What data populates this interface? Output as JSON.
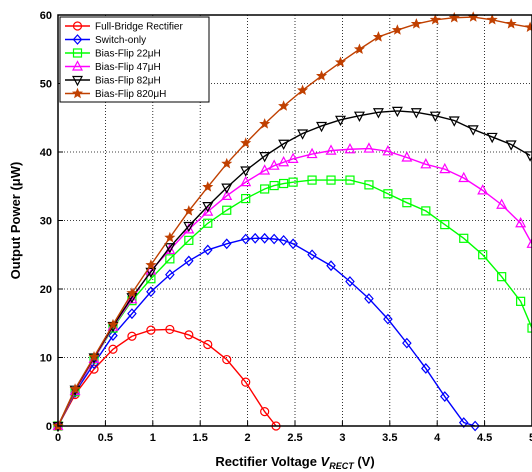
{
  "chart_data": {
    "type": "line",
    "xlabel": "Rectifier Voltage V_RECT (V)",
    "xlabel_parts": {
      "pre": "Rectifier Voltage ",
      "var": "V",
      "sub": "RECT",
      "post": " (V)"
    },
    "ylabel": "Output Power (μW)",
    "xlim": [
      0,
      5
    ],
    "ylim": [
      0,
      60
    ],
    "x_ticks": [
      0,
      0.5,
      1,
      1.5,
      2,
      2.5,
      3,
      3.5,
      4,
      4.5,
      5
    ],
    "x_tick_labels": [
      "0",
      "0.5",
      "1",
      "1.5",
      "2",
      "2.5",
      "3",
      "3.5",
      "4",
      "4.5",
      "5"
    ],
    "y_ticks": [
      0,
      10,
      20,
      30,
      40,
      50,
      60
    ],
    "y_tick_labels": [
      "0",
      "10",
      "20",
      "30",
      "40",
      "50",
      "60"
    ],
    "grid": true,
    "legend_position": "top-left",
    "series": [
      {
        "name": "Full-Bridge Rectifier",
        "color": "#ff0000",
        "marker": "circle",
        "x": [
          0,
          0.18,
          0.38,
          0.58,
          0.78,
          0.98,
          1.18,
          1.38,
          1.58,
          1.78,
          1.98,
          2.18,
          2.3
        ],
        "y": [
          0,
          4.6,
          8.3,
          11.2,
          13.1,
          14.0,
          14.1,
          13.3,
          11.9,
          9.7,
          6.4,
          2.1,
          0
        ]
      },
      {
        "name": "Switch-only",
        "color": "#0000ff",
        "marker": "diamond",
        "x": [
          0,
          0.18,
          0.38,
          0.58,
          0.78,
          0.98,
          1.18,
          1.38,
          1.58,
          1.78,
          1.98,
          2.08,
          2.18,
          2.28,
          2.38,
          2.48,
          2.68,
          2.88,
          3.08,
          3.28,
          3.48,
          3.68,
          3.88,
          4.08,
          4.28,
          4.4
        ],
        "y": [
          0,
          4.9,
          9.1,
          13.2,
          16.4,
          19.6,
          22.1,
          24.1,
          25.7,
          26.6,
          27.3,
          27.4,
          27.4,
          27.3,
          27.1,
          26.6,
          25.0,
          23.4,
          21.1,
          18.6,
          15.6,
          12.1,
          8.4,
          4.3,
          0.5,
          0
        ]
      },
      {
        "name": "Bias-Flip 22μH",
        "color": "#00ff00",
        "marker": "square",
        "x": [
          0,
          0.18,
          0.38,
          0.58,
          0.78,
          0.98,
          1.18,
          1.38,
          1.58,
          1.78,
          1.98,
          2.18,
          2.28,
          2.38,
          2.48,
          2.68,
          2.88,
          3.08,
          3.28,
          3.48,
          3.68,
          3.88,
          4.08,
          4.28,
          4.48,
          4.68,
          4.88,
          5.0
        ],
        "y": [
          0,
          5.0,
          9.8,
          14.3,
          18.3,
          21.5,
          24.4,
          27.1,
          29.6,
          31.5,
          33.2,
          34.6,
          35.1,
          35.4,
          35.6,
          35.9,
          35.9,
          35.9,
          35.2,
          33.9,
          32.6,
          31.4,
          29.4,
          27.4,
          25.0,
          21.8,
          18.2,
          14.3
        ]
      },
      {
        "name": "Bias-Flip 47μH",
        "color": "#ff00ff",
        "marker": "triangle-up",
        "x": [
          0,
          0.18,
          0.38,
          0.58,
          0.78,
          0.98,
          1.18,
          1.38,
          1.58,
          1.78,
          1.98,
          2.18,
          2.28,
          2.38,
          2.48,
          2.68,
          2.88,
          3.08,
          3.28,
          3.48,
          3.68,
          3.88,
          4.08,
          4.28,
          4.48,
          4.68,
          4.88,
          5.0
        ],
        "y": [
          0,
          5.1,
          9.8,
          14.5,
          18.5,
          22.7,
          25.7,
          28.7,
          31.3,
          33.6,
          35.6,
          37.3,
          38.0,
          38.5,
          39.0,
          39.7,
          40.2,
          40.4,
          40.5,
          40.1,
          39.2,
          38.2,
          37.5,
          36.2,
          34.4,
          32.3,
          29.6,
          26.6
        ]
      },
      {
        "name": "Bias-Flip 82μH",
        "color": "#000000",
        "marker": "triangle-down",
        "x": [
          0,
          0.18,
          0.38,
          0.58,
          0.78,
          0.98,
          1.18,
          1.38,
          1.58,
          1.78,
          1.98,
          2.18,
          2.38,
          2.58,
          2.78,
          2.98,
          3.18,
          3.38,
          3.58,
          3.78,
          3.98,
          4.18,
          4.38,
          4.58,
          4.78,
          4.98
        ],
        "y": [
          0,
          5.3,
          10.0,
          14.6,
          18.8,
          22.5,
          26.1,
          29.2,
          32.1,
          34.8,
          37.3,
          39.4,
          41.2,
          42.7,
          43.8,
          44.7,
          45.3,
          45.8,
          46.0,
          45.8,
          45.3,
          44.6,
          43.3,
          42.2,
          41.1,
          39.5
        ]
      },
      {
        "name": "Bias-Flip 820μH",
        "color": "#c04000",
        "marker": "star",
        "x": [
          0,
          0.18,
          0.38,
          0.58,
          0.78,
          0.98,
          1.18,
          1.38,
          1.58,
          1.78,
          1.98,
          2.18,
          2.38,
          2.58,
          2.78,
          2.98,
          3.18,
          3.38,
          3.58,
          3.78,
          3.98,
          4.18,
          4.38,
          4.58,
          4.78,
          4.98
        ],
        "y": [
          0,
          5.4,
          10.1,
          14.8,
          19.4,
          23.5,
          27.5,
          31.4,
          34.9,
          38.3,
          41.3,
          44.1,
          46.7,
          49.0,
          51.1,
          53.1,
          55.0,
          56.8,
          57.8,
          58.7,
          59.3,
          59.6,
          59.7,
          59.3,
          58.7,
          58.2
        ]
      }
    ]
  }
}
